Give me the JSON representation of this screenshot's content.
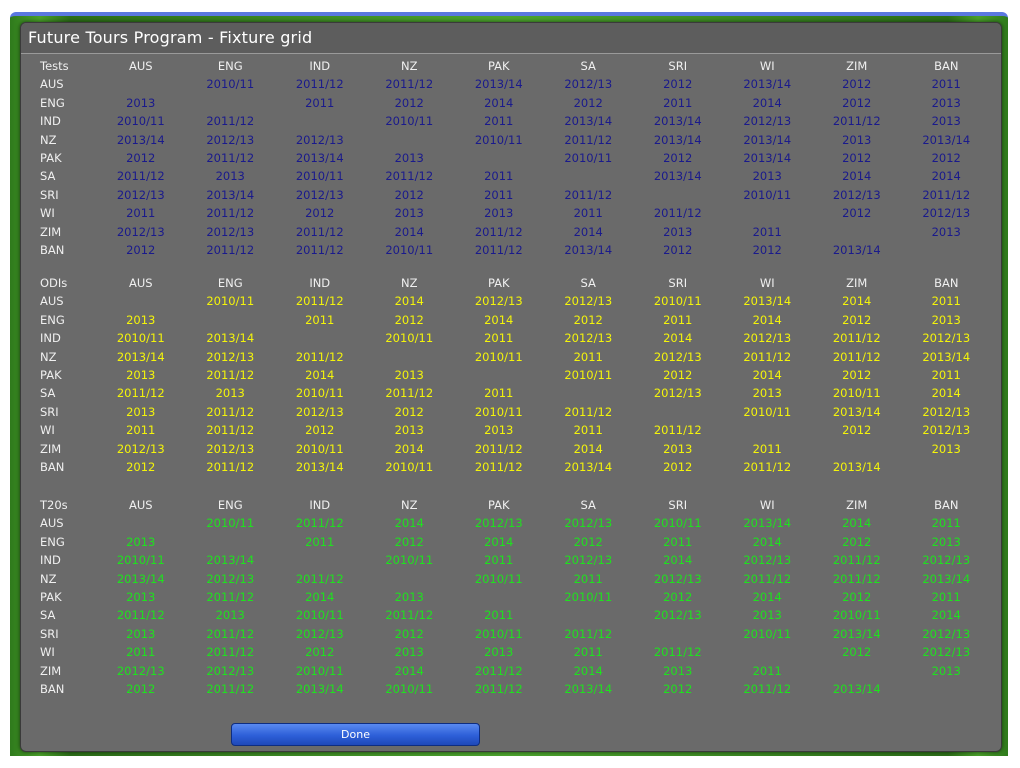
{
  "window": {
    "title": "Future Tours Program - Fixture grid"
  },
  "teams": [
    "AUS",
    "ENG",
    "IND",
    "NZ",
    "PAK",
    "SA",
    "SRI",
    "WI",
    "ZIM",
    "BAN"
  ],
  "colors": {
    "tests": "#1a1a8c",
    "odis": "#f4f40a",
    "t20s": "#1ee21e",
    "panel": "#6a6a6a",
    "button": "#2d5fd8"
  },
  "sections": [
    {
      "key": "tests",
      "label": "Tests",
      "rows": [
        {
          "team": "AUS",
          "cells": [
            "",
            "2010/11",
            "2011/12",
            "2011/12",
            "2013/14",
            "2012/13",
            "2012",
            "2013/14",
            "2012",
            "2011"
          ]
        },
        {
          "team": "ENG",
          "cells": [
            "2013",
            "",
            "2011",
            "2012",
            "2014",
            "2012",
            "2011",
            "2014",
            "2012",
            "2013"
          ]
        },
        {
          "team": "IND",
          "cells": [
            "2010/11",
            "2011/12",
            "",
            "2010/11",
            "2011",
            "2013/14",
            "2013/14",
            "2012/13",
            "2011/12",
            "2013"
          ]
        },
        {
          "team": "NZ",
          "cells": [
            "2013/14",
            "2012/13",
            "2012/13",
            "",
            "2010/11",
            "2011/12",
            "2013/14",
            "2013/14",
            "2013",
            "2013/14"
          ]
        },
        {
          "team": "PAK",
          "cells": [
            "2012",
            "2011/12",
            "2013/14",
            "2013",
            "",
            "2010/11",
            "2012",
            "2013/14",
            "2012",
            "2012"
          ]
        },
        {
          "team": "SA",
          "cells": [
            "2011/12",
            "2013",
            "2010/11",
            "2011/12",
            "2011",
            "",
            "2013/14",
            "2013",
            "2014",
            "2014"
          ]
        },
        {
          "team": "SRI",
          "cells": [
            "2012/13",
            "2013/14",
            "2012/13",
            "2012",
            "2011",
            "2011/12",
            "",
            "2010/11",
            "2012/13",
            "2011/12"
          ]
        },
        {
          "team": "WI",
          "cells": [
            "2011",
            "2011/12",
            "2012",
            "2013",
            "2013",
            "2011",
            "2011/12",
            "",
            "2012",
            "2012/13"
          ]
        },
        {
          "team": "ZIM",
          "cells": [
            "2012/13",
            "2012/13",
            "2011/12",
            "2014",
            "2011/12",
            "2014",
            "2013",
            "2011",
            "",
            "2013"
          ]
        },
        {
          "team": "BAN",
          "cells": [
            "2012",
            "2011/12",
            "2011/12",
            "2010/11",
            "2011/12",
            "2013/14",
            "2012",
            "2012",
            "2013/14",
            ""
          ]
        }
      ]
    },
    {
      "key": "odis",
      "label": "ODIs",
      "rows": [
        {
          "team": "AUS",
          "cells": [
            "",
            "2010/11",
            "2011/12",
            "2014",
            "2012/13",
            "2012/13",
            "2010/11",
            "2013/14",
            "2014",
            "2011"
          ]
        },
        {
          "team": "ENG",
          "cells": [
            "2013",
            "",
            "2011",
            "2012",
            "2014",
            "2012",
            "2011",
            "2014",
            "2012",
            "2013"
          ]
        },
        {
          "team": "IND",
          "cells": [
            "2010/11",
            "2013/14",
            "",
            "2010/11",
            "2011",
            "2012/13",
            "2014",
            "2012/13",
            "2011/12",
            "2012/13"
          ]
        },
        {
          "team": "NZ",
          "cells": [
            "2013/14",
            "2012/13",
            "2011/12",
            "",
            "2010/11",
            "2011",
            "2012/13",
            "2011/12",
            "2011/12",
            "2013/14"
          ]
        },
        {
          "team": "PAK",
          "cells": [
            "2013",
            "2011/12",
            "2014",
            "2013",
            "",
            "2010/11",
            "2012",
            "2014",
            "2012",
            "2011"
          ]
        },
        {
          "team": "SA",
          "cells": [
            "2011/12",
            "2013",
            "2010/11",
            "2011/12",
            "2011",
            "",
            "2012/13",
            "2013",
            "2010/11",
            "2014"
          ]
        },
        {
          "team": "SRI",
          "cells": [
            "2013",
            "2011/12",
            "2012/13",
            "2012",
            "2010/11",
            "2011/12",
            "",
            "2010/11",
            "2013/14",
            "2012/13"
          ]
        },
        {
          "team": "WI",
          "cells": [
            "2011",
            "2011/12",
            "2012",
            "2013",
            "2013",
            "2011",
            "2011/12",
            "",
            "2012",
            "2012/13"
          ]
        },
        {
          "team": "ZIM",
          "cells": [
            "2012/13",
            "2012/13",
            "2010/11",
            "2014",
            "2011/12",
            "2014",
            "2013",
            "2011",
            "",
            "2013"
          ]
        },
        {
          "team": "BAN",
          "cells": [
            "2012",
            "2011/12",
            "2013/14",
            "2010/11",
            "2011/12",
            "2013/14",
            "2012",
            "2011/12",
            "2013/14",
            ""
          ]
        }
      ]
    },
    {
      "key": "t20s",
      "label": "T20s",
      "rows": [
        {
          "team": "AUS",
          "cells": [
            "",
            "2010/11",
            "2011/12",
            "2014",
            "2012/13",
            "2012/13",
            "2010/11",
            "2013/14",
            "2014",
            "2011"
          ]
        },
        {
          "team": "ENG",
          "cells": [
            "2013",
            "",
            "2011",
            "2012",
            "2014",
            "2012",
            "2011",
            "2014",
            "2012",
            "2013"
          ]
        },
        {
          "team": "IND",
          "cells": [
            "2010/11",
            "2013/14",
            "",
            "2010/11",
            "2011",
            "2012/13",
            "2014",
            "2012/13",
            "2011/12",
            "2012/13"
          ]
        },
        {
          "team": "NZ",
          "cells": [
            "2013/14",
            "2012/13",
            "2011/12",
            "",
            "2010/11",
            "2011",
            "2012/13",
            "2011/12",
            "2011/12",
            "2013/14"
          ]
        },
        {
          "team": "PAK",
          "cells": [
            "2013",
            "2011/12",
            "2014",
            "2013",
            "",
            "2010/11",
            "2012",
            "2014",
            "2012",
            "2011"
          ]
        },
        {
          "team": "SA",
          "cells": [
            "2011/12",
            "2013",
            "2010/11",
            "2011/12",
            "2011",
            "",
            "2012/13",
            "2013",
            "2010/11",
            "2014"
          ]
        },
        {
          "team": "SRI",
          "cells": [
            "2013",
            "2011/12",
            "2012/13",
            "2012",
            "2010/11",
            "2011/12",
            "",
            "2010/11",
            "2013/14",
            "2012/13"
          ]
        },
        {
          "team": "WI",
          "cells": [
            "2011",
            "2011/12",
            "2012",
            "2013",
            "2013",
            "2011",
            "2011/12",
            "",
            "2012",
            "2012/13"
          ]
        },
        {
          "team": "ZIM",
          "cells": [
            "2012/13",
            "2012/13",
            "2010/11",
            "2014",
            "2011/12",
            "2014",
            "2013",
            "2011",
            "",
            "2013"
          ]
        },
        {
          "team": "BAN",
          "cells": [
            "2012",
            "2011/12",
            "2013/14",
            "2010/11",
            "2011/12",
            "2013/14",
            "2012",
            "2011/12",
            "2013/14",
            ""
          ]
        }
      ]
    }
  ],
  "buttons": {
    "done_label": "Done"
  }
}
